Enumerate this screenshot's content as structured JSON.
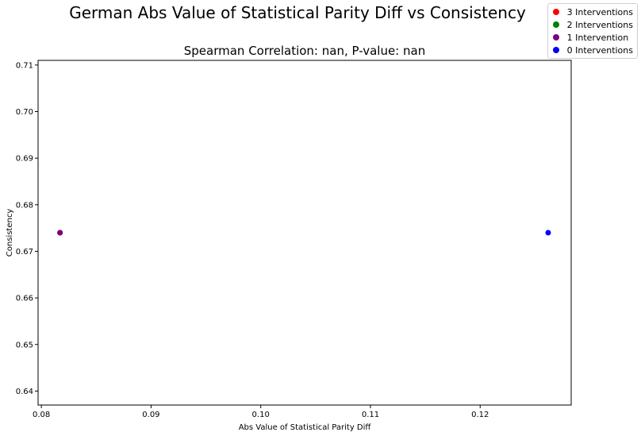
{
  "chart_data": {
    "type": "scatter",
    "title": "German Abs Value of Statistical Parity Diff vs Consistency",
    "subtitle": "Spearman Correlation: nan, P-value: nan",
    "xlabel": "Abs Value of Statistical Parity Diff",
    "ylabel": "Consistency",
    "xlim": [
      0.0797,
      0.1283
    ],
    "ylim": [
      0.637,
      0.711
    ],
    "xticks": [
      "0.08",
      "0.09",
      "0.10",
      "0.11",
      "0.12"
    ],
    "xtick_values": [
      0.08,
      0.09,
      0.1,
      0.11,
      0.12
    ],
    "yticks": [
      "0.64",
      "0.65",
      "0.66",
      "0.67",
      "0.68",
      "0.69",
      "0.70",
      "0.71"
    ],
    "ytick_values": [
      0.64,
      0.65,
      0.66,
      0.67,
      0.68,
      0.69,
      0.7,
      0.71
    ],
    "grid": false,
    "legend_position": "top-right",
    "series": [
      {
        "name": "3 Interventions",
        "color": "#ff0000",
        "x": [
          0.0817
        ],
        "y": [
          0.674
        ]
      },
      {
        "name": "2 Interventions",
        "color": "#008000",
        "x": [
          0.0817
        ],
        "y": [
          0.674
        ]
      },
      {
        "name": "1 Intervention",
        "color": "#800080",
        "x": [
          0.0817
        ],
        "y": [
          0.674
        ]
      },
      {
        "name": "0 Interventions",
        "color": "#0000ff",
        "x": [
          0.1262
        ],
        "y": [
          0.674
        ]
      }
    ]
  }
}
